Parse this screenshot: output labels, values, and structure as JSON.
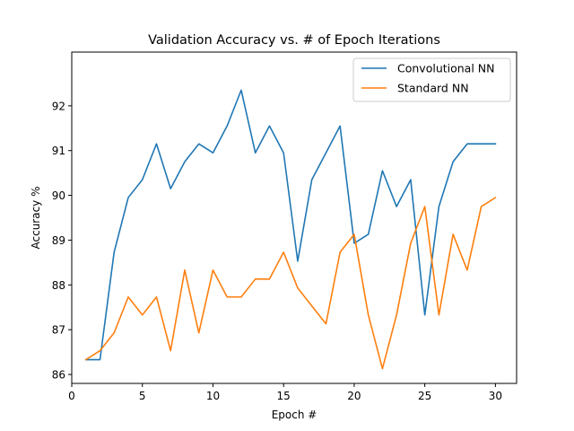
{
  "chart_data": {
    "type": "line",
    "title": "Validation Accuracy vs. # of Epoch Iterations",
    "xlabel": "Epoch #",
    "ylabel": "Accuracy %",
    "xlim": [
      0,
      31.5
    ],
    "ylim": [
      85.8,
      93.2
    ],
    "xticks": [
      0,
      5,
      10,
      15,
      20,
      25,
      30
    ],
    "yticks": [
      86,
      87,
      88,
      89,
      90,
      91,
      92
    ],
    "grid": false,
    "legend_position": "top-right",
    "x": [
      1,
      2,
      3,
      4,
      5,
      6,
      7,
      8,
      9,
      10,
      11,
      12,
      13,
      14,
      15,
      16,
      17,
      18,
      19,
      20,
      21,
      22,
      23,
      24,
      25,
      26,
      27,
      28,
      29,
      30
    ],
    "series": [
      {
        "name": "Convolutional NN",
        "color": "#1f77b4",
        "values": [
          86.33,
          86.33,
          88.73,
          89.95,
          90.35,
          91.15,
          90.15,
          90.75,
          91.15,
          90.95,
          91.55,
          92.35,
          90.95,
          91.55,
          90.95,
          88.53,
          90.35,
          90.95,
          91.55,
          88.93,
          89.13,
          90.55,
          89.75,
          90.35,
          87.33,
          89.75,
          90.75,
          91.15,
          91.15,
          91.15
        ]
      },
      {
        "name": "Standard NN",
        "color": "#ff7f0e",
        "values": [
          86.33,
          86.53,
          86.93,
          87.73,
          87.33,
          87.73,
          86.53,
          88.33,
          86.93,
          88.33,
          87.73,
          87.73,
          88.13,
          88.13,
          88.73,
          87.93,
          87.53,
          87.13,
          88.73,
          89.13,
          87.33,
          86.13,
          87.33,
          88.93,
          89.75,
          87.33,
          89.13,
          88.33,
          89.75,
          89.95
        ]
      }
    ]
  }
}
